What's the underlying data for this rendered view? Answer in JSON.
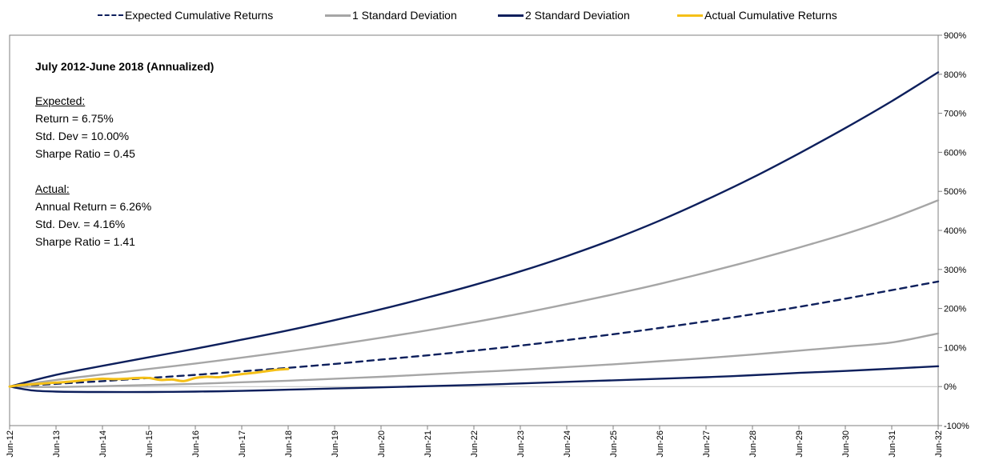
{
  "chart_data": {
    "type": "line",
    "legend_placement": "top",
    "x_ticks": [
      "Jun-12",
      "Jun-13",
      "Jun-14",
      "Jun-15",
      "Jun-16",
      "Jun-17",
      "Jun-18",
      "Jun-19",
      "Jun-20",
      "Jun-21",
      "Jun-22",
      "Jun-23",
      "Jun-24",
      "Jun-25",
      "Jun-26",
      "Jun-27",
      "Jun-28",
      "Jun-29",
      "Jun-30",
      "Jun-31",
      "Jun-32"
    ],
    "y_ticks": [
      "-100%",
      "0%",
      "100%",
      "200%",
      "300%",
      "400%",
      "500%",
      "600%",
      "700%",
      "800%",
      "900%"
    ],
    "ylim": [
      -100,
      900
    ],
    "series": [
      {
        "name": "Expected Cumulative Returns",
        "color": "#0d1f5c",
        "dash": true,
        "years": [
          0,
          1,
          2,
          3,
          4,
          5,
          6,
          7,
          8,
          9,
          10,
          11,
          12,
          13,
          14,
          15,
          16,
          17,
          18,
          19,
          20
        ],
        "values": [
          0,
          7,
          14,
          22,
          30,
          39,
          48,
          58,
          69,
          80,
          92,
          105,
          119,
          134,
          150,
          167,
          185,
          204,
          225,
          247,
          269
        ]
      },
      {
        "name": "1 Standard Deviation",
        "color": "#a6a6a6",
        "dash": false,
        "years": [
          0,
          1,
          2,
          3,
          4,
          5,
          6,
          7,
          8,
          9,
          10,
          11,
          12,
          13,
          14,
          15,
          16,
          17,
          18,
          19,
          20
        ],
        "values": [
          0,
          17,
          31,
          45,
          59,
          74,
          90,
          107,
          125,
          144,
          165,
          187,
          211,
          236,
          263,
          292,
          323,
          356,
          391,
          431,
          477
        ]
      },
      {
        "name": "1 Standard Deviation",
        "color": "#a6a6a6",
        "dash": false,
        "years": [
          0,
          1,
          2,
          3,
          4,
          5,
          6,
          7,
          8,
          9,
          10,
          11,
          12,
          13,
          14,
          15,
          16,
          17,
          18,
          19,
          20
        ],
        "values": [
          0,
          -1,
          1,
          4,
          7,
          11,
          15,
          20,
          25,
          31,
          37,
          43,
          50,
          57,
          65,
          73,
          82,
          92,
          102,
          113,
          136
        ]
      },
      {
        "name": "2 Standard Deviation",
        "color": "#0d1f5c",
        "dash": false,
        "years": [
          0,
          1,
          2,
          3,
          4,
          5,
          6,
          7,
          8,
          9,
          10,
          11,
          12,
          13,
          14,
          15,
          16,
          17,
          18,
          19,
          20
        ],
        "values": [
          0,
          30,
          53,
          75,
          97,
          120,
          144,
          170,
          198,
          228,
          260,
          295,
          334,
          377,
          425,
          478,
          535,
          597,
          662,
          731,
          805
        ]
      },
      {
        "name": "2 Standard Deviation",
        "color": "#0d1f5c",
        "dash": false,
        "years": [
          0,
          0.5,
          1,
          2,
          3,
          4,
          5,
          6,
          7,
          8,
          9,
          10,
          11,
          12,
          13,
          14,
          15,
          16,
          17,
          18,
          19,
          20
        ],
        "values": [
          0,
          -10,
          -13,
          -14,
          -14,
          -13,
          -11,
          -8,
          -5,
          -2,
          1,
          4,
          8,
          12,
          16,
          20,
          24,
          29,
          35,
          40,
          46,
          52
        ]
      },
      {
        "name": "Actual Cumulative Returns",
        "color": "#f5c018",
        "dash": false,
        "years": [
          0,
          0.25,
          0.5,
          0.75,
          1,
          1.25,
          1.5,
          1.75,
          2,
          2.25,
          2.5,
          2.75,
          3,
          3.25,
          3.5,
          3.75,
          4,
          4.25,
          4.5,
          4.75,
          5,
          5.25,
          5.5,
          5.75,
          6
        ],
        "values": [
          0,
          4,
          6,
          8,
          10,
          12,
          15,
          18,
          20,
          19,
          20,
          22,
          22,
          17,
          18,
          14,
          22,
          25,
          24,
          28,
          32,
          35,
          39,
          43,
          45
        ]
      }
    ]
  },
  "legend": [
    {
      "label": "Expected Cumulative Returns",
      "color": "#0d1f5c",
      "dash": true
    },
    {
      "label": "1 Standard Deviation",
      "color": "#a6a6a6",
      "dash": false
    },
    {
      "label": "2 Standard Deviation",
      "color": "#0d1f5c",
      "dash": false
    },
    {
      "label": "Actual Cumulative Returns",
      "color": "#f5c018",
      "dash": false
    }
  ],
  "annotation": {
    "title": "July 2012-June 2018 (Annualized)",
    "expected_heading": "Expected:",
    "expected_return": "Return = 6.75%",
    "expected_std": "Std. Dev = 10.00%",
    "expected_sharpe": "Sharpe Ratio = 0.45",
    "actual_heading": "Actual:",
    "actual_return": "Annual Return = 6.26%",
    "actual_std": "Std. Dev.  = 4.16%",
    "actual_sharpe": "Sharpe Ratio = 1.41"
  }
}
